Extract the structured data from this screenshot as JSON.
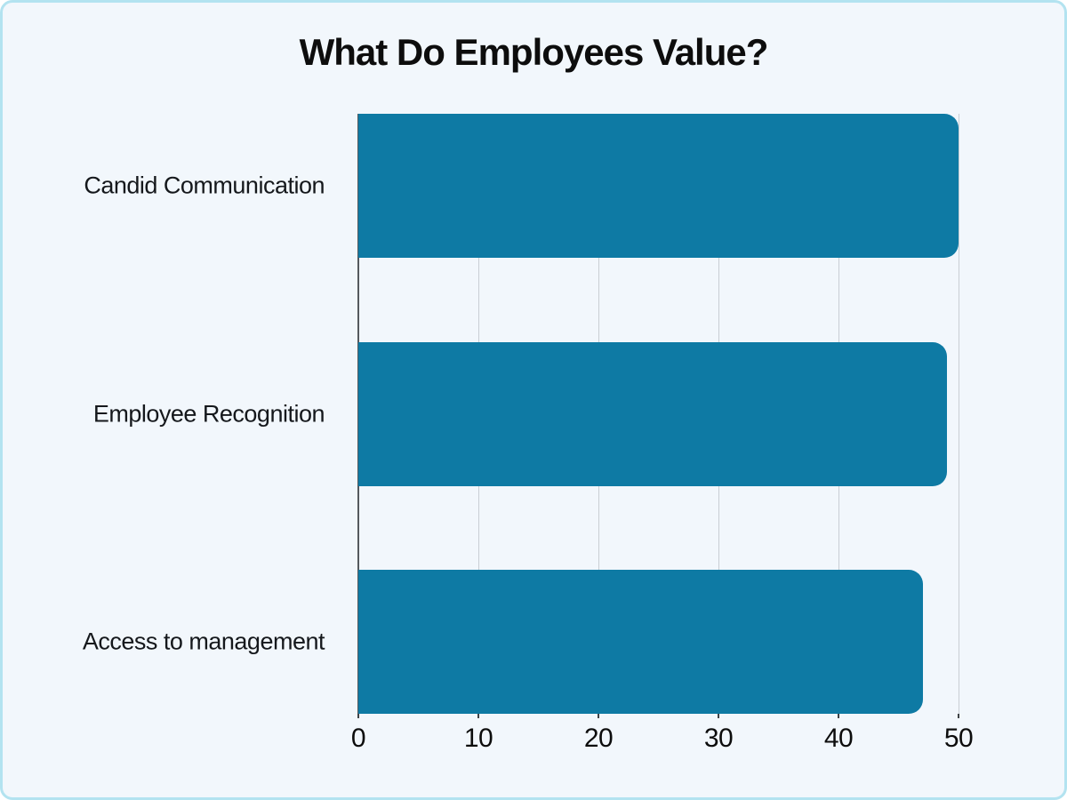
{
  "chart_data": {
    "type": "bar",
    "orientation": "horizontal",
    "title": "What Do Employees Value?",
    "categories": [
      "Candid Communication",
      "Employee Recognition",
      "Access to management"
    ],
    "values": [
      50,
      49,
      47
    ],
    "xlabel": "",
    "ylabel": "",
    "x_ticks": [
      0,
      10,
      20,
      30,
      40,
      50
    ],
    "xlim": [
      0,
      51
    ],
    "grid": true,
    "legend": false,
    "colors": {
      "bar": "#0e7aa4",
      "background": "#f2f7fc",
      "frame_border": "#b3e3f0",
      "gridline": "#c9ced4",
      "axis_line": "#55595e",
      "text": "#111111"
    }
  }
}
